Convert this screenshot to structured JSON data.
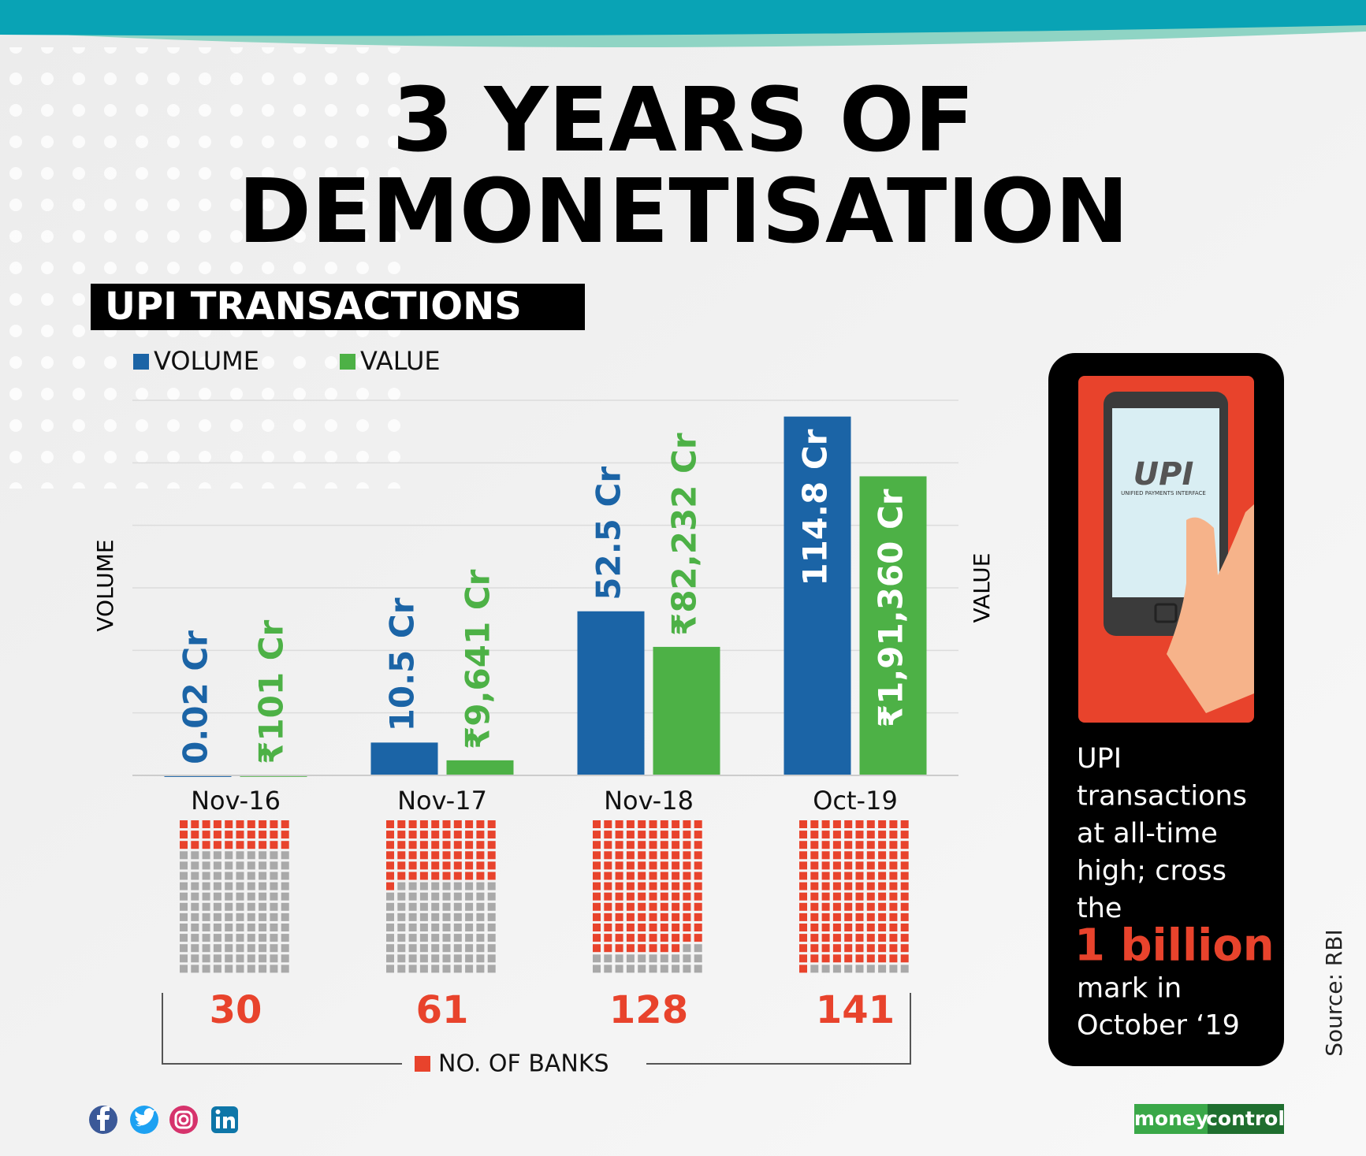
{
  "title": [
    "3 YEARS OF",
    "DEMONETISATION"
  ],
  "chart_data": {
    "type": "bar",
    "title": "UPI TRANSACTIONS",
    "categories": [
      "Nov-16",
      "Nov-17",
      "Nov-18",
      "Oct-19"
    ],
    "ylabel": "VOLUME",
    "y2label": "VALUE",
    "series": [
      {
        "name": "VOLUME",
        "color": "#1b64a6",
        "values": [
          0.02,
          10.5,
          52.5,
          114.8
        ],
        "value_labels": [
          "0.02 Cr",
          "10.5 Cr",
          "52.5 Cr",
          "114.8 Cr"
        ]
      },
      {
        "name": "VALUE",
        "color": "#4db146",
        "axis": "y2",
        "values": [
          101,
          9641,
          82232,
          191360
        ],
        "value_labels": [
          "₹101 Cr",
          "₹9,641 Cr",
          "₹82,232 Cr",
          "₹1,91,360 Cr"
        ]
      }
    ],
    "ylim": [
      0,
      120
    ],
    "y2lim": [
      0,
      240000
    ],
    "banks": {
      "name": "NO. OF BANKS",
      "color": "#e8432c",
      "values": [
        30,
        61,
        128,
        141
      ]
    }
  },
  "callout": {
    "lines": [
      "UPI",
      "transactions",
      "at all-time",
      "high; cross",
      "the"
    ],
    "highlight": "1 billion",
    "tail": [
      "mark in",
      "October ‘19"
    ]
  },
  "phone": {
    "logo": "UPI",
    "caption": "UNIFIED PAYMENTS INTERFACE"
  },
  "source": "Source: RBI",
  "brand": [
    "money",
    "control"
  ]
}
